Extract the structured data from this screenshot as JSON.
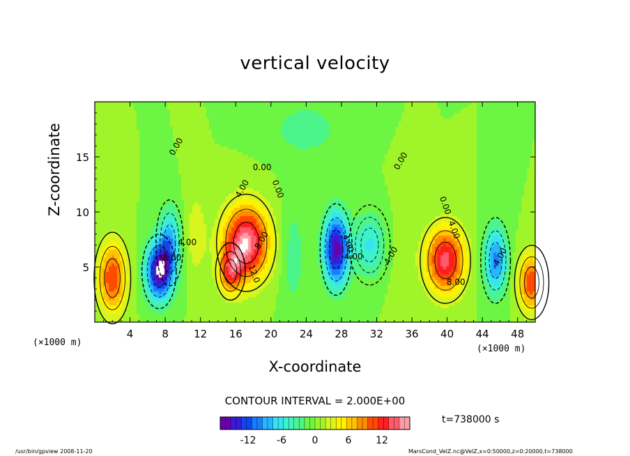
{
  "chart_data": {
    "type": "heatmap",
    "title": "vertical velocity",
    "xlabel": "X-coordinate",
    "ylabel": "Z-coordinate",
    "x_unit": "(×1000 m)",
    "xlim": [
      0,
      50
    ],
    "ylim": [
      0,
      20
    ],
    "x_ticks": [
      4,
      8,
      12,
      16,
      20,
      24,
      28,
      32,
      36,
      40,
      44,
      48
    ],
    "y_ticks": [
      5,
      10,
      15
    ],
    "contour_interval": "CONTOUR INTERVAL = 2.000E+00",
    "time": "t=738000  s",
    "colorbar": {
      "range": [
        -17,
        17
      ],
      "ticks": [
        -12,
        -6,
        0,
        6,
        12
      ],
      "colors": [
        "#6a00a8",
        "#3a1ad6",
        "#1046f0",
        "#1a7cff",
        "#25b6ff",
        "#35e3f5",
        "#3ef2c8",
        "#4cf58a",
        "#6cf542",
        "#a0f52a",
        "#d8f520",
        "#fff200",
        "#ffc400",
        "#ff8c00",
        "#ff4a00",
        "#ff1e1e",
        "#ff5a6a",
        "#ff9aa6"
      ]
    },
    "contour_labels": [
      "0.00",
      "0.00",
      "0.00",
      "0.00",
      "0.00",
      "4.00",
      "4.00",
      "-4.00",
      "-8.00",
      "8.00",
      "12.0",
      "-4.00",
      "-4.00",
      "4.00",
      "8.00",
      "-4.00"
    ],
    "cells": [
      {
        "x": 2.0,
        "z": 4.0,
        "sx": 1.6,
        "sz": 3.2,
        "w": 11
      },
      {
        "x": 7.3,
        "z": 4.6,
        "sx": 1.5,
        "sz": 2.6,
        "w": -16
      },
      {
        "x": 8.5,
        "z": 7.2,
        "sx": 1.2,
        "sz": 3.0,
        "w": -8
      },
      {
        "x": 17.2,
        "z": 7.2,
        "sx": 2.6,
        "sz": 3.4,
        "w": 16
      },
      {
        "x": 15.4,
        "z": 4.6,
        "sx": 1.3,
        "sz": 2.0,
        "w": 9
      },
      {
        "x": 27.4,
        "z": 6.6,
        "sx": 1.4,
        "sz": 3.2,
        "w": -16
      },
      {
        "x": 31.2,
        "z": 7.0,
        "sx": 1.8,
        "sz": 2.8,
        "w": -6
      },
      {
        "x": 39.8,
        "z": 5.6,
        "sx": 2.2,
        "sz": 3.0,
        "w": 14
      },
      {
        "x": 45.5,
        "z": 5.6,
        "sx": 1.3,
        "sz": 3.0,
        "w": -10
      },
      {
        "x": 49.6,
        "z": 3.6,
        "sx": 1.5,
        "sz": 2.6,
        "w": 11
      },
      {
        "x": 11.5,
        "z": 8.0,
        "sx": 1.2,
        "sz": 4.0,
        "w": 3
      },
      {
        "x": 22.5,
        "z": 6.0,
        "sx": 1.4,
        "sz": 5.0,
        "w": -3
      },
      {
        "x": 35.0,
        "z": 6.0,
        "sx": 1.6,
        "sz": 5.0,
        "w": 1
      },
      {
        "x": 24.0,
        "z": 17.5,
        "sx": 4.0,
        "sz": 2.5,
        "w": -3
      }
    ]
  },
  "footer": {
    "left": "/usr/bin/gpview   2008-11-20",
    "right": "MarsCond_VelZ.nc@VelZ,x=0:50000,z=0:20000,t=738000"
  }
}
